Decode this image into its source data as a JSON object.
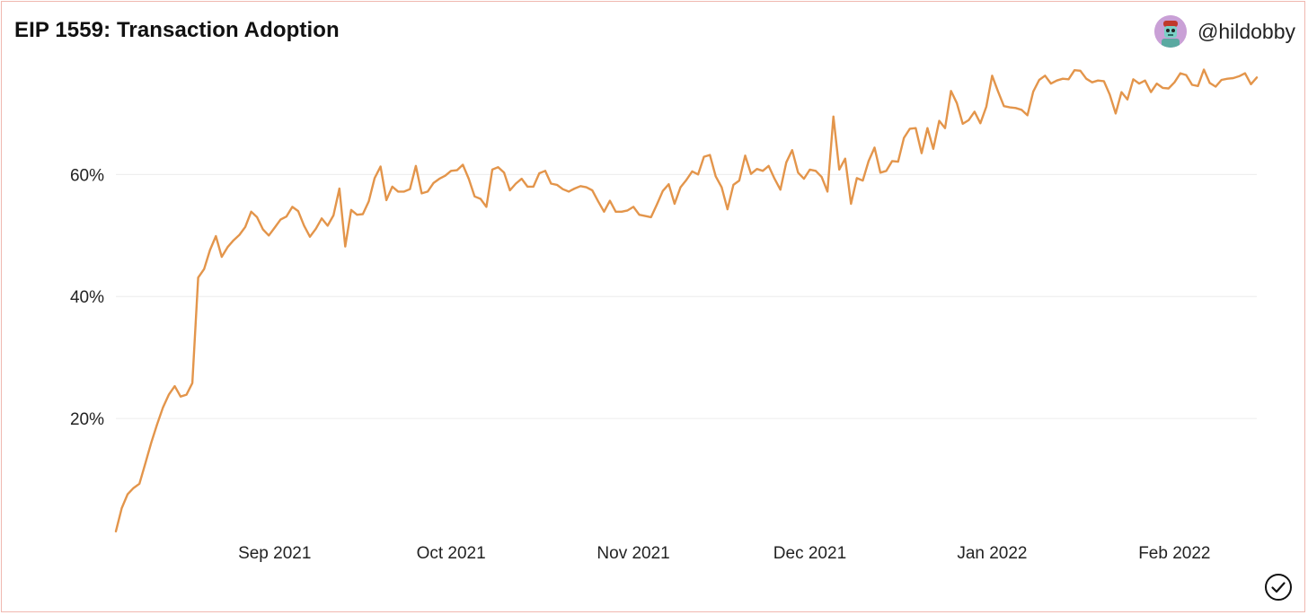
{
  "header": {
    "title": "EIP 1559: Transaction Adoption",
    "author_handle": "@hildobby",
    "avatar_icon": "avatar-icon"
  },
  "status": {
    "check_icon": "check-circle-icon"
  },
  "colors": {
    "line": "#e3954b",
    "grid": "#ececec",
    "border": "#f0b8b0"
  },
  "chart_data": {
    "type": "line",
    "title": "EIP 1559: Transaction Adoption",
    "xlabel": "",
    "ylabel": "",
    "x_start": "2021-08-05",
    "x_end": "2022-02-15",
    "xlim": [
      "2021-08-05",
      "2022-02-15"
    ],
    "ylim": [
      0.3,
      78.3
    ],
    "y_ticks": [
      {
        "value": 20,
        "label": "20%"
      },
      {
        "value": 40,
        "label": "40%"
      },
      {
        "value": 60,
        "label": "60%"
      }
    ],
    "x_ticks": [
      {
        "date": "2021-09-01",
        "label": "Sep 2021"
      },
      {
        "date": "2021-10-01",
        "label": "Oct 2021"
      },
      {
        "date": "2021-11-01",
        "label": "Nov 2021"
      },
      {
        "date": "2021-12-01",
        "label": "Dec 2021"
      },
      {
        "date": "2022-01-01",
        "label": "Jan 2022"
      },
      {
        "date": "2022-02-01",
        "label": "Feb 2022"
      }
    ],
    "grid": true,
    "legend": "none",
    "series": [
      {
        "values": [
          1.5,
          5.3,
          7.6,
          8.6,
          9.3,
          12.6,
          16.0,
          19.0,
          21.8,
          23.9,
          25.3,
          23.6,
          23.9,
          25.8,
          43.1,
          44.5,
          47.6,
          49.9,
          46.5,
          48.1,
          49.2,
          50.1,
          51.4,
          53.9,
          53.0,
          51.0,
          50.0,
          51.3,
          52.6,
          53.1,
          54.7,
          54.0,
          51.6,
          49.8,
          51.1,
          52.8,
          51.6,
          53.3,
          57.7,
          48.2,
          54.2,
          53.4,
          53.5,
          55.6,
          59.4,
          61.3,
          55.8,
          58.0,
          57.2,
          57.2,
          57.6,
          61.4,
          56.9,
          57.2,
          58.6,
          59.3,
          59.8,
          60.6,
          60.7,
          61.6,
          59.3,
          56.4,
          56.0,
          54.7,
          60.8,
          61.2,
          60.3,
          57.4,
          58.5,
          59.3,
          58.0,
          58.0,
          60.2,
          60.6,
          58.5,
          58.3,
          57.6,
          57.2,
          57.7,
          58.1,
          57.9,
          57.4,
          55.6,
          53.9,
          55.7,
          53.9,
          53.9,
          54.1,
          54.7,
          53.4,
          53.2,
          53.0,
          55.1,
          57.3,
          58.4,
          55.2,
          57.9,
          59.1,
          60.5,
          60.0,
          62.9,
          63.2,
          59.7,
          57.9,
          54.3,
          58.3,
          59.0,
          63.1,
          60.1,
          60.9,
          60.6,
          61.4,
          59.3,
          57.5,
          62.0,
          64.0,
          60.3,
          59.3,
          60.8,
          60.6,
          59.6,
          57.2,
          69.5,
          60.8,
          62.6,
          55.2,
          59.4,
          59.0,
          62.2,
          64.4,
          60.3,
          60.6,
          62.2,
          62.1,
          66.0,
          67.5,
          67.6,
          63.5,
          67.6,
          64.2,
          68.8,
          67.6,
          73.7,
          71.7,
          68.3,
          68.9,
          70.3,
          68.4,
          71.1,
          76.2,
          73.6,
          71.2,
          71.0,
          70.9,
          70.6,
          69.7,
          73.6,
          75.5,
          76.2,
          74.9,
          75.4,
          75.7,
          75.6,
          77.1,
          77.0,
          75.7,
          75.1,
          75.4,
          75.3,
          73.1,
          70.0,
          73.5,
          72.3,
          75.6,
          74.9,
          75.4,
          73.5,
          74.9,
          74.2,
          74.1,
          75.1,
          76.6,
          76.3,
          74.7,
          74.5,
          77.2,
          75.0,
          74.4,
          75.5,
          75.7,
          75.8,
          76.1,
          76.6,
          74.8,
          75.9
        ]
      }
    ]
  }
}
